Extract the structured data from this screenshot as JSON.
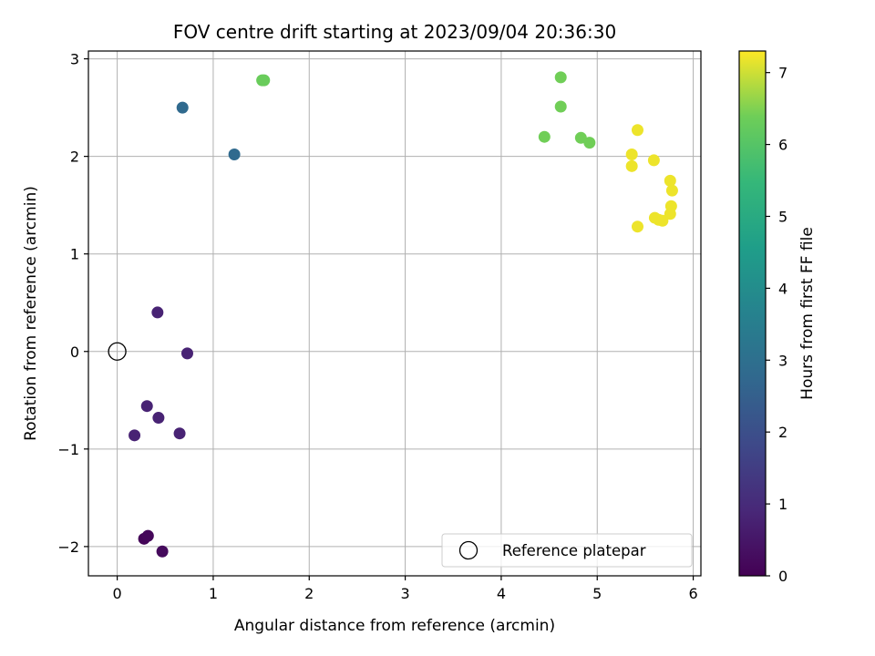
{
  "chart_data": {
    "type": "scatter",
    "title": "FOV centre drift starting at 2023/09/04 20:36:30",
    "xlabel": "Angular distance from reference (arcmin)",
    "ylabel": "Rotation from reference (arcmin)",
    "xlim": [
      -0.3,
      6.08
    ],
    "ylim": [
      -2.3,
      3.08
    ],
    "xticks": [
      0,
      1,
      2,
      3,
      4,
      5,
      6
    ],
    "xtick_labels": [
      "0",
      "1",
      "2",
      "3",
      "4",
      "5",
      "6"
    ],
    "yticks": [
      -2,
      -1,
      0,
      1,
      2,
      3
    ],
    "ytick_labels": [
      "−2",
      "−1",
      "0",
      "1",
      "2",
      "3"
    ],
    "grid": true,
    "colormap": "viridis",
    "colorbar": {
      "label": "Hours from first FF file",
      "range": [
        0,
        7.3
      ],
      "ticks": [
        0,
        1,
        2,
        3,
        4,
        5,
        6,
        7
      ],
      "tick_labels": [
        "0",
        "1",
        "2",
        "3",
        "4",
        "5",
        "6",
        "7"
      ]
    },
    "legend": {
      "placement": "lower-right",
      "entries": [
        {
          "label": "Reference platepar",
          "marker": "open-circle"
        }
      ]
    },
    "reference_point": {
      "x": 0,
      "y": 0
    },
    "points": [
      {
        "x": 0.28,
        "y": -1.92,
        "c": 0.1
      },
      {
        "x": 0.32,
        "y": -1.89,
        "c": 0.15
      },
      {
        "x": 0.47,
        "y": -2.05,
        "c": 0.2
      },
      {
        "x": 0.18,
        "y": -0.86,
        "c": 0.8
      },
      {
        "x": 0.31,
        "y": -0.56,
        "c": 0.8
      },
      {
        "x": 0.43,
        "y": -0.68,
        "c": 0.8
      },
      {
        "x": 0.65,
        "y": -0.84,
        "c": 0.8
      },
      {
        "x": 0.42,
        "y": 0.4,
        "c": 0.8
      },
      {
        "x": 0.73,
        "y": -0.02,
        "c": 0.8
      },
      {
        "x": 0.68,
        "y": 2.5,
        "c": 2.8
      },
      {
        "x": 1.22,
        "y": 2.02,
        "c": 2.8
      },
      {
        "x": 1.51,
        "y": 2.78,
        "c": 6.3
      },
      {
        "x": 1.53,
        "y": 2.78,
        "c": 6.3
      },
      {
        "x": 4.62,
        "y": 2.81,
        "c": 6.4
      },
      {
        "x": 4.62,
        "y": 2.51,
        "c": 6.4
      },
      {
        "x": 4.45,
        "y": 2.2,
        "c": 6.4
      },
      {
        "x": 4.83,
        "y": 2.19,
        "c": 6.4
      },
      {
        "x": 4.92,
        "y": 2.14,
        "c": 6.4
      },
      {
        "x": 5.42,
        "y": 2.27,
        "c": 7.2
      },
      {
        "x": 5.36,
        "y": 2.02,
        "c": 7.2
      },
      {
        "x": 5.36,
        "y": 1.9,
        "c": 7.2
      },
      {
        "x": 5.59,
        "y": 1.96,
        "c": 7.2
      },
      {
        "x": 5.76,
        "y": 1.75,
        "c": 7.2
      },
      {
        "x": 5.78,
        "y": 1.65,
        "c": 7.2
      },
      {
        "x": 5.77,
        "y": 1.49,
        "c": 7.2
      },
      {
        "x": 5.76,
        "y": 1.41,
        "c": 7.2
      },
      {
        "x": 5.6,
        "y": 1.37,
        "c": 7.2
      },
      {
        "x": 5.64,
        "y": 1.35,
        "c": 7.2
      },
      {
        "x": 5.68,
        "y": 1.34,
        "c": 7.2
      },
      {
        "x": 5.42,
        "y": 1.28,
        "c": 7.2
      }
    ]
  }
}
